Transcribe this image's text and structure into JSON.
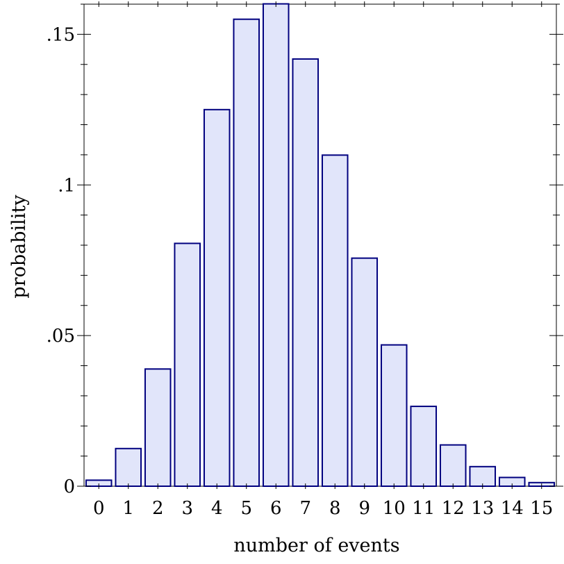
{
  "chart_data": {
    "type": "bar",
    "title": "",
    "xlabel": "number of events",
    "ylabel": "probability",
    "categories": [
      "0",
      "1",
      "2",
      "3",
      "4",
      "5",
      "6",
      "7",
      "8",
      "9",
      "10",
      "11",
      "12",
      "13",
      "14",
      "15"
    ],
    "values": [
      0.002,
      0.0125,
      0.0389,
      0.0806,
      0.125,
      0.155,
      0.1601,
      0.1418,
      0.1099,
      0.0757,
      0.0469,
      0.0265,
      0.0137,
      0.0065,
      0.0029,
      0.0012
    ],
    "ylim": [
      0,
      0.16
    ],
    "yticks": [
      {
        "value": 0,
        "label": "0"
      },
      {
        "value": 0.05,
        "label": ".05"
      },
      {
        "value": 0.1,
        "label": ".1"
      },
      {
        "value": 0.15,
        "label": ".15"
      }
    ],
    "minor_tick_step": 0.01,
    "grid": false,
    "colors": {
      "bar_fill": "#e1e5fa",
      "bar_stroke": "#00007f"
    }
  }
}
